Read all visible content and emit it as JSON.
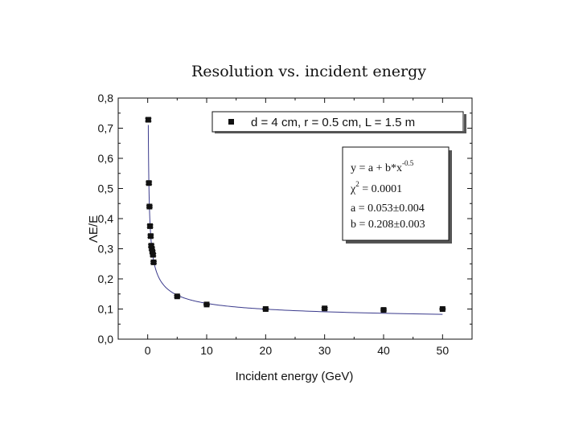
{
  "chart_data": {
    "type": "scatter",
    "title": "Resolution vs. incident energy",
    "xlabel": "Incident energy (GeV)",
    "ylabel": "ΛE/E",
    "xlim": [
      -5,
      55
    ],
    "ylim": [
      0.0,
      0.8
    ],
    "xticks": [
      0,
      10,
      20,
      30,
      40,
      50
    ],
    "xtick_labels": [
      "0",
      "10",
      "20",
      "30",
      "40",
      "50"
    ],
    "yticks": [
      0.0,
      0.1,
      0.2,
      0.3,
      0.4,
      0.5,
      0.6,
      0.7,
      0.8
    ],
    "ytick_labels": [
      "0,0",
      "0,1",
      "0,2",
      "0,3",
      "0,4",
      "0,5",
      "0,6",
      "0,7",
      "0,8"
    ],
    "grid": false,
    "legend_position": "top-right",
    "series": [
      {
        "name": "d = 4 cm, r = 0.5 cm, L = 1.5 m",
        "marker": "square",
        "x": [
          0.1,
          0.2,
          0.3,
          0.4,
          0.5,
          0.6,
          0.7,
          0.8,
          0.9,
          1.0,
          5,
          10,
          20,
          30,
          40,
          50
        ],
        "y": [
          0.728,
          0.518,
          0.44,
          0.375,
          0.342,
          0.31,
          0.3,
          0.29,
          0.28,
          0.255,
          0.142,
          0.115,
          0.1,
          0.102,
          0.097,
          0.1
        ],
        "yerr": [
          0.005,
          0.004,
          0.003,
          0.004,
          0.004,
          0.004,
          0.004,
          0.004,
          0.004,
          0.003,
          0.003,
          0.002,
          0.002,
          0.003,
          0.003,
          0.002
        ]
      }
    ],
    "fit": {
      "a": 0.053,
      "b": 0.208,
      "exponent": -0.5,
      "formula_prefix": "y = a + b*x",
      "formula_exponent": "-0.5",
      "chi_prefix": "χ",
      "chi_exponent": "2",
      "chi_value": " = 0.0001",
      "a_label": "a = 0.053±0.004",
      "b_label": "b = 0.208±0.003"
    }
  },
  "colors": {
    "marker": "#111111",
    "fit_line": "#3a3a8c",
    "axis": "#111111"
  }
}
